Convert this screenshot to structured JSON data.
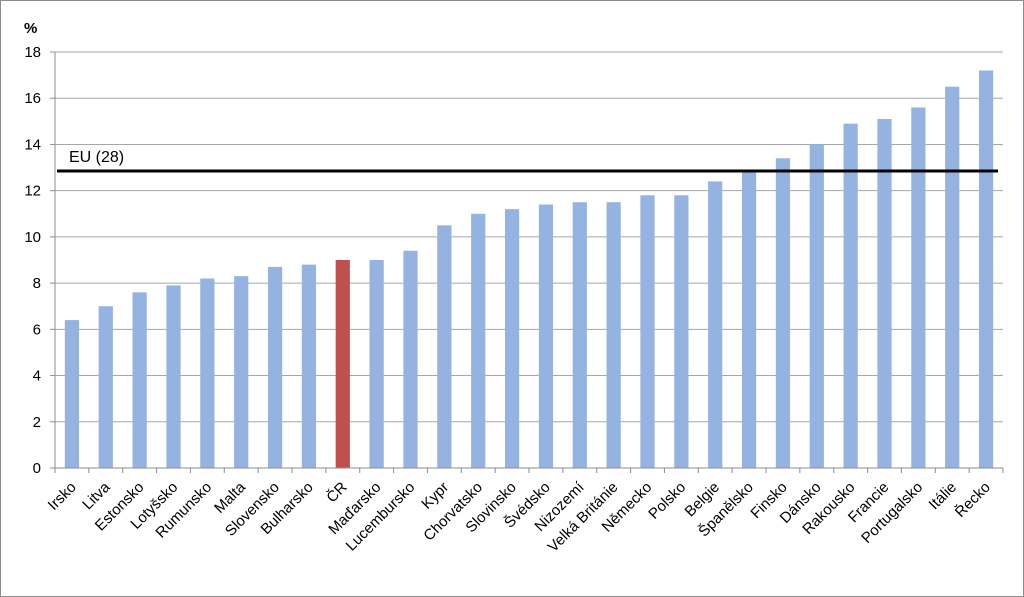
{
  "chart_data": {
    "type": "bar",
    "unit_label": "%",
    "title": "",
    "xlabel": "",
    "ylabel": "",
    "ylim": [
      0,
      18
    ],
    "yticks": [
      0,
      2,
      4,
      6,
      8,
      10,
      12,
      14,
      16,
      18
    ],
    "grid": true,
    "legend": "none",
    "categories": [
      "Irsko",
      "Litva",
      "Estonsko",
      "Lotyšsko",
      "Rumunsko",
      "Malta",
      "Slovensko",
      "Bulharsko",
      "ČR",
      "Maďarsko",
      "Lucembursko",
      "Kypr",
      "Chorvatsko",
      "Slovinsko",
      "Švédsko",
      "Nizozemí",
      "Velká Británie",
      "Německo",
      "Polsko",
      "Belgie",
      "Španělsko",
      "Finsko",
      "Dánsko",
      "Rakousko",
      "Francie",
      "Portugalsko",
      "Itálie",
      "Řecko"
    ],
    "values": [
      6.4,
      7.0,
      7.6,
      7.9,
      8.2,
      8.3,
      8.7,
      8.8,
      9.0,
      9.0,
      9.4,
      10.5,
      11.0,
      11.2,
      11.4,
      11.5,
      11.5,
      11.8,
      11.8,
      12.4,
      12.9,
      13.4,
      14.0,
      14.9,
      15.1,
      15.6,
      16.5,
      17.2
    ],
    "highlight_category": "ČR",
    "colors": {
      "bar": "#95b3e0",
      "highlight": "#c0504d",
      "reference_line": "#000000"
    },
    "reference_line": {
      "label": "EU (28)",
      "value": 12.85
    }
  }
}
